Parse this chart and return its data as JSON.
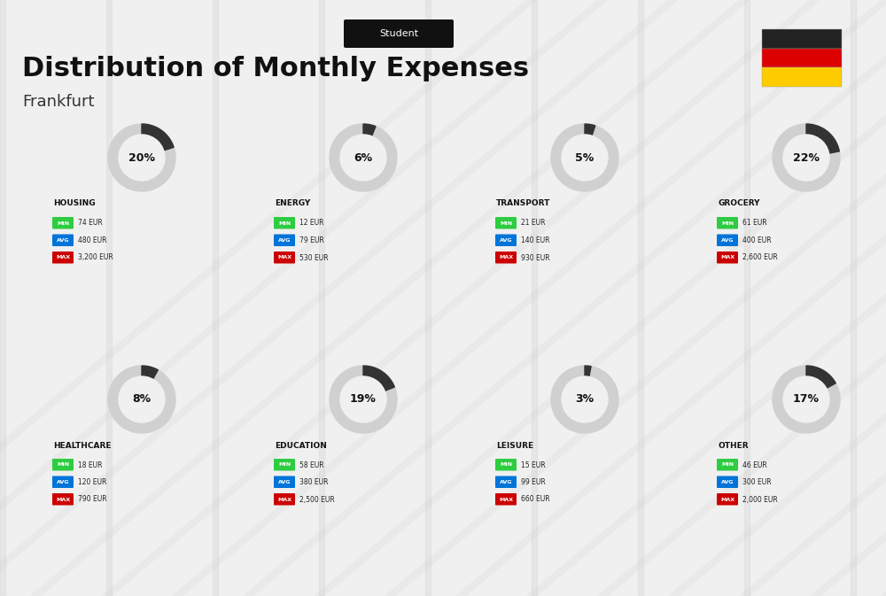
{
  "title": "Distribution of Monthly Expenses",
  "subtitle": "Student",
  "city": "Frankfurt",
  "bg_color": "#f0f0f0",
  "title_color": "#111111",
  "city_color": "#333333",
  "categories": [
    {
      "name": "HOUSING",
      "pct": 20,
      "min": "74 EUR",
      "avg": "480 EUR",
      "max": "3,200 EUR",
      "row": 0,
      "col": 0
    },
    {
      "name": "ENERGY",
      "pct": 6,
      "min": "12 EUR",
      "avg": "79 EUR",
      "max": "530 EUR",
      "row": 0,
      "col": 1
    },
    {
      "name": "TRANSPORT",
      "pct": 5,
      "min": "21 EUR",
      "avg": "140 EUR",
      "max": "930 EUR",
      "row": 0,
      "col": 2
    },
    {
      "name": "GROCERY",
      "pct": 22,
      "min": "61 EUR",
      "avg": "400 EUR",
      "max": "2,600 EUR",
      "row": 0,
      "col": 3
    },
    {
      "name": "HEALTHCARE",
      "pct": 8,
      "min": "18 EUR",
      "avg": "120 EUR",
      "max": "790 EUR",
      "row": 1,
      "col": 0
    },
    {
      "name": "EDUCATION",
      "pct": 19,
      "min": "58 EUR",
      "avg": "380 EUR",
      "max": "2,500 EUR",
      "row": 1,
      "col": 1
    },
    {
      "name": "LEISURE",
      "pct": 3,
      "min": "15 EUR",
      "avg": "99 EUR",
      "max": "660 EUR",
      "row": 1,
      "col": 2
    },
    {
      "name": "OTHER",
      "pct": 17,
      "min": "46 EUR",
      "avg": "300 EUR",
      "max": "2,000 EUR",
      "row": 1,
      "col": 3
    }
  ],
  "min_color": "#2ecc40",
  "avg_color": "#0074d9",
  "max_color": "#cc0000",
  "label_color": "#ffffff",
  "donut_filled_color": "#333333",
  "donut_empty_color": "#d0d0d0",
  "donut_center_color": "#f0f0f0",
  "flag_colors": [
    "#222222",
    "#dd0000",
    "#ffcc00"
  ],
  "subtitle_box_color": "#111111",
  "subtitle_text_color": "#ffffff"
}
